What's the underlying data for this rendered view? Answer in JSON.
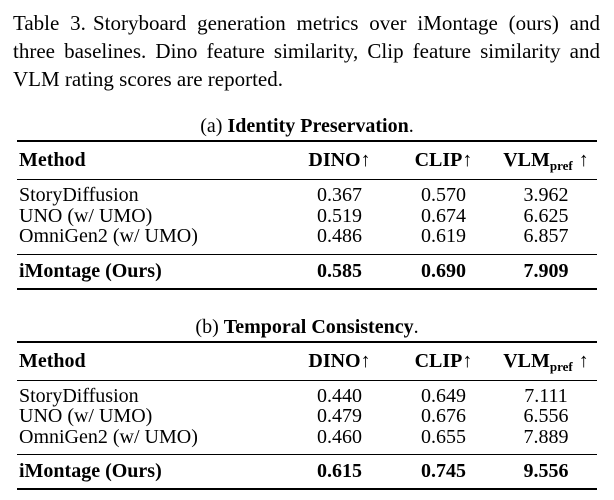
{
  "caption": {
    "label": "Table 3.",
    "lines": [
      "Storyboard generation metrics over iMontage (ours) and",
      "three baselines. Dino feature similarity, Clip feature similarity and",
      "VLM rating scores are reported."
    ]
  },
  "headers": {
    "method": "Method",
    "dino": "DINO",
    "clip": "CLIP",
    "vlm": "VLM",
    "vlm_sub": "pref",
    "up_arrow": "↑"
  },
  "tables": [
    {
      "subcaption": {
        "prefix": "(a)",
        "title": "Identity Preservation",
        "suffix": "."
      },
      "rows": [
        {
          "method": "StoryDiffusion",
          "dino": "0.367",
          "clip": "0.570",
          "vlm": "3.962"
        },
        {
          "method": "UNO (w/ UMO)",
          "dino": "0.519",
          "clip": "0.674",
          "vlm": "6.625"
        },
        {
          "method": "OmniGen2 (w/ UMO)",
          "dino": "0.486",
          "clip": "0.619",
          "vlm": "6.857"
        }
      ],
      "highlight": {
        "method": "iMontage (Ours)",
        "dino": "0.585",
        "clip": "0.690",
        "vlm": "7.909"
      }
    },
    {
      "subcaption": {
        "prefix": "(b)",
        "title": "Temporal Consistency",
        "suffix": "."
      },
      "rows": [
        {
          "method": "StoryDiffusion",
          "dino": "0.440",
          "clip": "0.649",
          "vlm": "7.111"
        },
        {
          "method": "UNO (w/ UMO)",
          "dino": "0.479",
          "clip": "0.676",
          "vlm": "6.556"
        },
        {
          "method": "OmniGen2 (w/ UMO)",
          "dino": "0.460",
          "clip": "0.655",
          "vlm": "7.889"
        }
      ],
      "highlight": {
        "method": "iMontage (Ours)",
        "dino": "0.615",
        "clip": "0.745",
        "vlm": "9.556"
      }
    }
  ]
}
